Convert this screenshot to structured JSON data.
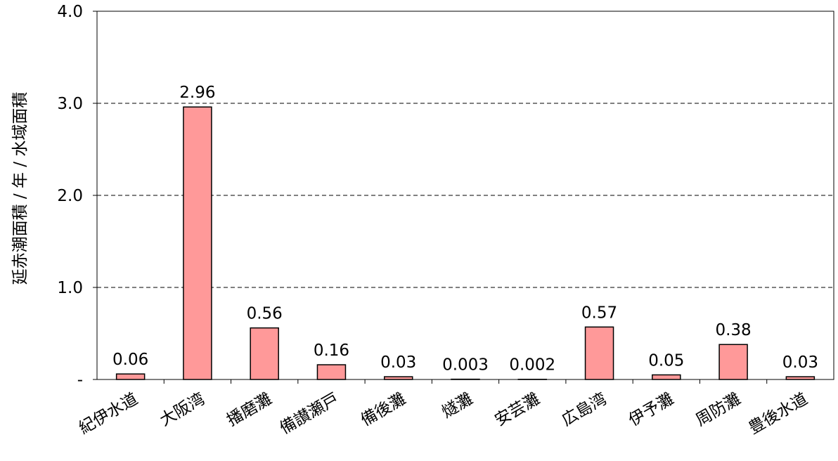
{
  "chart_data": {
    "type": "bar",
    "categories": [
      "紀伊水道",
      "大阪湾",
      "播磨灘",
      "備讃瀬戸",
      "備後灘",
      "燧灘",
      "安芸灘",
      "広島湾",
      "伊予灘",
      "周防灘",
      "豊後水道"
    ],
    "values": [
      0.06,
      2.96,
      0.56,
      0.16,
      0.03,
      0.003,
      0.002,
      0.57,
      0.05,
      0.38,
      0.03
    ],
    "data_labels": [
      "0.06",
      "2.96",
      "0.56",
      "0.16",
      "0.03",
      "0.003",
      "0.002",
      "0.57",
      "0.05",
      "0.38",
      "0.03"
    ],
    "title": "",
    "xlabel": "",
    "ylabel": "延赤潮面積 / 年 / 水域面積",
    "ylim": [
      0,
      4.0
    ],
    "yticks": [
      0,
      1.0,
      2.0,
      3.0,
      4.0
    ],
    "ytick_labels": [
      "-",
      "1.0",
      "2.0",
      "3.0",
      "4.0"
    ],
    "grid": "horizontal dashed",
    "legend": "none",
    "bar_color": "#ff9999",
    "bar_edge_color": "#000000"
  }
}
